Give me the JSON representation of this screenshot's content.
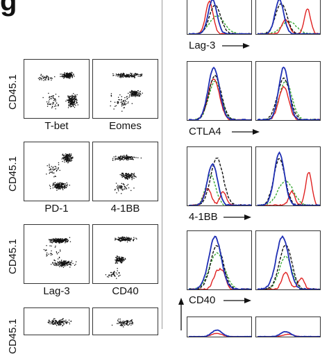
{
  "figure": {
    "panel_letter": "g"
  },
  "dotplots": {
    "y_label": "CD45.1",
    "rows": [
      {
        "left_label": "T-bet",
        "right_label": "Eomes"
      },
      {
        "left_label": "PD-1",
        "right_label": "4-1BB"
      },
      {
        "left_label": "Lag-3",
        "right_label": "CD40"
      },
      {
        "left_label": "",
        "right_label": ""
      }
    ]
  },
  "histograms": {
    "rows": [
      {
        "label": "Lag-3"
      },
      {
        "label": "CTLA4"
      },
      {
        "label": "4-1BB"
      },
      {
        "label": "CD40"
      },
      {
        "label": ""
      }
    ],
    "colors": {
      "blue": "#1f2fb4",
      "dashed": "#111111",
      "green": "#3aaa35",
      "red": "#e02020"
    }
  }
}
